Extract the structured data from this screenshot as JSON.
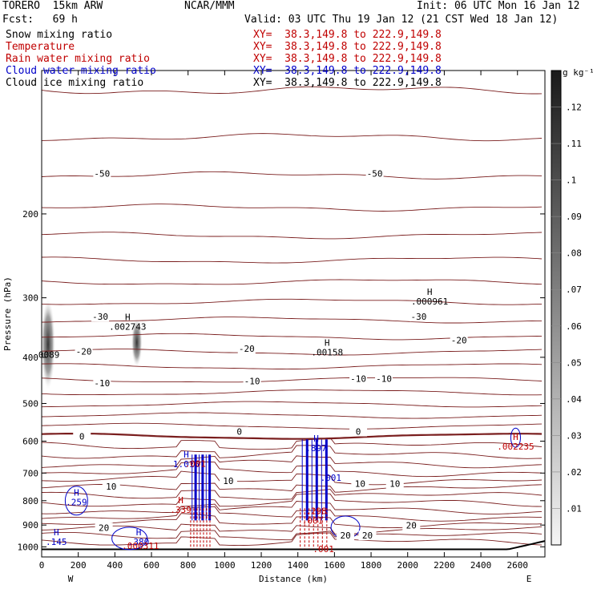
{
  "header": {
    "model": "TORERO  15km ARW",
    "org": "NCAR/MMM",
    "init": "Init: 06 UTC Mon 16 Jan 12",
    "fcst": "Fcst:   69 h",
    "valid": "Valid: 03 UTC Thu 19 Jan 12 (21 CST Wed 18 Jan 12)"
  },
  "fields": [
    {
      "name": "Snow mixing ratio",
      "xy": "XY=  38.3,149.8 to 222.9,149.8",
      "color": "#000000"
    },
    {
      "name": "Temperature",
      "xy": "XY=  38.3,149.8 to 222.9,149.8",
      "color": "#c00000"
    },
    {
      "name": "Rain water mixing ratio",
      "xy": "XY=  38.3,149.8 to 222.9,149.8",
      "color": "#c00000"
    },
    {
      "name": "Cloud water mixing ratio",
      "xy": "XY=  38.3,149.8 to 222.9,149.8",
      "color": "#0000c8"
    },
    {
      "name": "Cloud ice mixing ratio",
      "xy": "XY=  38.3,149.8 to 222.9,149.8",
      "color": "#000000"
    }
  ],
  "chart_data": {
    "type": "cross-section",
    "xlabel": "Distance (km)",
    "ylabel": "Pressure (hPa)",
    "xlim": [
      0,
      2750
    ],
    "ylim": [
      1050,
      100
    ],
    "y_scale": "log",
    "x_ticks": [
      0,
      200,
      400,
      600,
      800,
      1000,
      1200,
      1400,
      1600,
      1800,
      2000,
      2200,
      2400,
      2600
    ],
    "y_ticks": [
      200,
      300,
      400,
      500,
      600,
      700,
      800,
      900,
      1000
    ],
    "x_end_labels": {
      "left": "W",
      "right": "E"
    },
    "colorbar": {
      "unit": "g kg⁻¹",
      "range": [
        0,
        0.13
      ],
      "ticks": [
        ".01",
        ".02",
        ".03",
        ".04",
        ".05",
        ".06",
        ".07",
        ".08",
        ".09",
        ".1",
        ".11",
        ".12"
      ]
    },
    "temperature_labels": [
      {
        "x": 330,
        "p": 165,
        "text": "-50"
      },
      {
        "x": 1820,
        "p": 165,
        "text": "-50"
      },
      {
        "x": 320,
        "p": 330,
        "text": "-30"
      },
      {
        "x": 2060,
        "p": 330,
        "text": "-30"
      },
      {
        "x": 230,
        "p": 390,
        "text": "-20"
      },
      {
        "x": 1120,
        "p": 385,
        "text": "-20"
      },
      {
        "x": 2280,
        "p": 370,
        "text": "-20"
      },
      {
        "x": 330,
        "p": 455,
        "text": "-10"
      },
      {
        "x": 1150,
        "p": 450,
        "text": "-10"
      },
      {
        "x": 1730,
        "p": 445,
        "text": "-10"
      },
      {
        "x": 1870,
        "p": 445,
        "text": "-10"
      },
      {
        "x": 220,
        "p": 588,
        "text": "0"
      },
      {
        "x": 1080,
        "p": 575,
        "text": "0"
      },
      {
        "x": 1730,
        "p": 575,
        "text": "0"
      },
      {
        "x": 380,
        "p": 750,
        "text": "10"
      },
      {
        "x": 1020,
        "p": 730,
        "text": "10"
      },
      {
        "x": 1740,
        "p": 740,
        "text": "10"
      },
      {
        "x": 1930,
        "p": 740,
        "text": "10"
      },
      {
        "x": 340,
        "p": 915,
        "text": "20"
      },
      {
        "x": 1660,
        "p": 950,
        "text": "20"
      },
      {
        "x": 1780,
        "p": 950,
        "text": "20"
      },
      {
        "x": 2020,
        "p": 905,
        "text": "20"
      }
    ],
    "maxima_labels": [
      {
        "x": 40,
        "p": 395,
        "h": "",
        "value": "0089",
        "color": "#000000"
      },
      {
        "x": 470,
        "p": 345,
        "h": "H",
        "value": ".002743",
        "color": "#000000"
      },
      {
        "x": 1560,
        "p": 390,
        "h": "H",
        "value": ".00158",
        "color": "#000000"
      },
      {
        "x": 2120,
        "p": 305,
        "h": "H",
        "value": ".000961",
        "color": "#000000"
      },
      {
        "x": 790,
        "p": 670,
        "h": "H",
        "value": "1.015",
        "color": "#0000c8"
      },
      {
        "x": 1500,
        "p": 620,
        "h": "H",
        "value": ".897",
        "color": "#0000c8"
      },
      {
        "x": 840,
        "p": 668,
        "h": "",
        "value": ".001",
        "color": "#c00000"
      },
      {
        "x": 1580,
        "p": 715,
        "h": "",
        "value": ".001",
        "color": "#0000c8"
      },
      {
        "x": 190,
        "p": 805,
        "h": "H",
        "value": ".259",
        "color": "#0000c8"
      },
      {
        "x": 760,
        "p": 835,
        "h": "H",
        "value": ".339",
        "color": "#c00000"
      },
      {
        "x": 1500,
        "p": 840,
        "h": "",
        "value": ".298",
        "color": "#c00000"
      },
      {
        "x": 1480,
        "p": 880,
        "h": "",
        "value": ".001",
        "color": "#c00000"
      },
      {
        "x": 2590,
        "p": 615,
        "h": "H",
        "value": ".002235",
        "color": "#c00000"
      },
      {
        "x": 80,
        "p": 975,
        "h": "H",
        "value": ".145",
        "color": "#0000c8"
      },
      {
        "x": 530,
        "p": 975,
        "h": "H",
        "value": ".380",
        "color": "#0000c8"
      },
      {
        "x": 540,
        "p": 995,
        "h": "",
        "value": ".000311",
        "color": "#c00000"
      },
      {
        "x": 1540,
        "p": 1010,
        "h": "",
        "value": ".001",
        "color": "#c00000"
      }
    ]
  }
}
